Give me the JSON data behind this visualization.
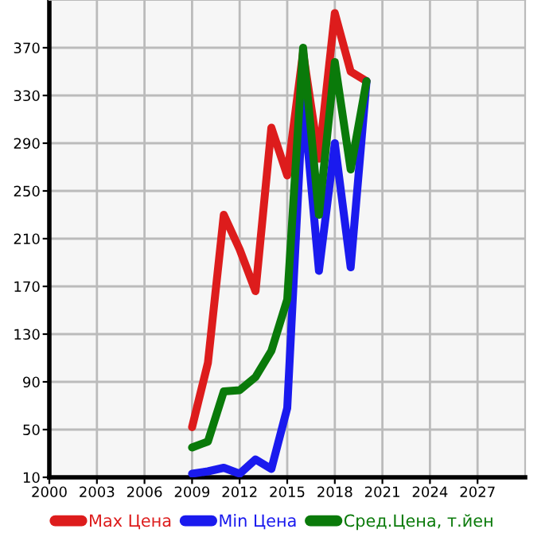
{
  "chart_data": {
    "type": "line",
    "x": [
      2009,
      2010,
      2011,
      2012,
      2013,
      2014,
      2015,
      2016,
      2017,
      2018,
      2019,
      2020
    ],
    "series": [
      {
        "name": "Max Цена",
        "color": "#dd1c1c",
        "values": [
          52,
          106,
          230,
          201,
          166,
          303,
          263,
          366,
          277,
          399,
          350,
          342
        ]
      },
      {
        "name": "Min Цена",
        "color": "#1a1aee",
        "values": [
          13,
          15,
          18,
          13,
          25,
          17,
          68,
          330,
          183,
          290,
          186,
          342
        ]
      },
      {
        "name": "Сред.Цена, т.йен",
        "color": "#0a7a0a",
        "values": [
          35,
          40,
          82,
          83,
          94,
          116,
          159,
          370,
          230,
          358,
          268,
          342
        ]
      }
    ],
    "xlim": [
      2000,
      2030
    ],
    "xticks": [
      2000,
      2003,
      2006,
      2009,
      2012,
      2015,
      2018,
      2021,
      2024,
      2027
    ],
    "ylim": [
      10,
      410
    ],
    "yticks": [
      10,
      50,
      90,
      130,
      170,
      210,
      250,
      290,
      330,
      370
    ],
    "grid": true,
    "legend": "bottom",
    "line_style": "solid"
  }
}
